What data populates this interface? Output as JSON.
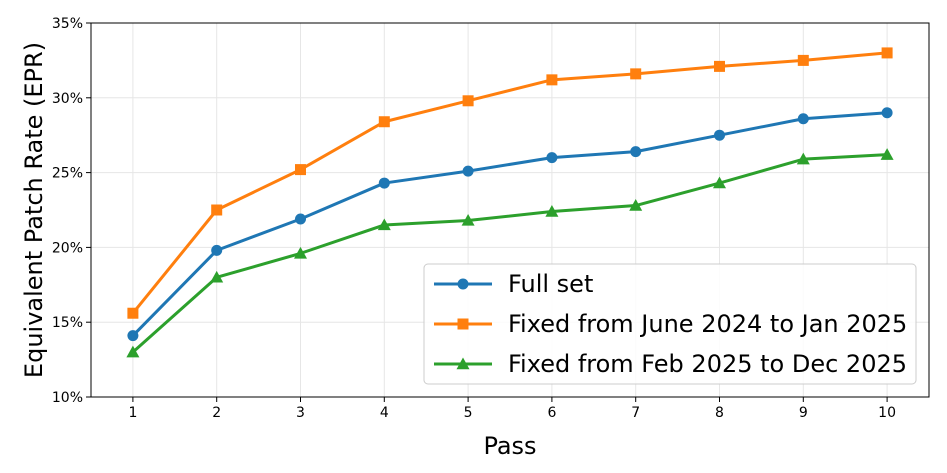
{
  "chart_data": {
    "type": "line",
    "title": "",
    "xlabel": "Pass",
    "ylabel": "Equivalent Patch Rate (EPR)",
    "x": [
      1,
      2,
      3,
      4,
      5,
      6,
      7,
      8,
      9,
      10
    ],
    "x_tick_labels": [
      "1",
      "2",
      "3",
      "4",
      "5",
      "6",
      "7",
      "8",
      "9",
      "10"
    ],
    "ylim": [
      10,
      35
    ],
    "y_ticks": [
      10,
      15,
      20,
      25,
      30,
      35
    ],
    "y_tick_labels": [
      "10%",
      "15%",
      "20%",
      "25%",
      "30%",
      "35%"
    ],
    "y_unit": "%",
    "grid": true,
    "legend_position": "lower-right",
    "series": [
      {
        "name": "Full set",
        "color": "#1f77b4",
        "marker": "circle",
        "values": [
          14.1,
          19.8,
          21.9,
          24.3,
          25.1,
          26.0,
          26.4,
          27.5,
          28.6,
          29.0
        ]
      },
      {
        "name": "Fixed from June 2024 to Jan 2025",
        "color": "#ff7f0e",
        "marker": "square",
        "values": [
          15.6,
          22.5,
          25.2,
          28.4,
          29.8,
          31.2,
          31.6,
          32.1,
          32.5,
          33.0
        ]
      },
      {
        "name": "Fixed from Feb 2025 to Dec 2025",
        "color": "#2ca02c",
        "marker": "triangle",
        "values": [
          13.0,
          18.0,
          19.6,
          21.5,
          21.8,
          22.4,
          22.8,
          24.3,
          25.9,
          26.2
        ]
      }
    ]
  }
}
